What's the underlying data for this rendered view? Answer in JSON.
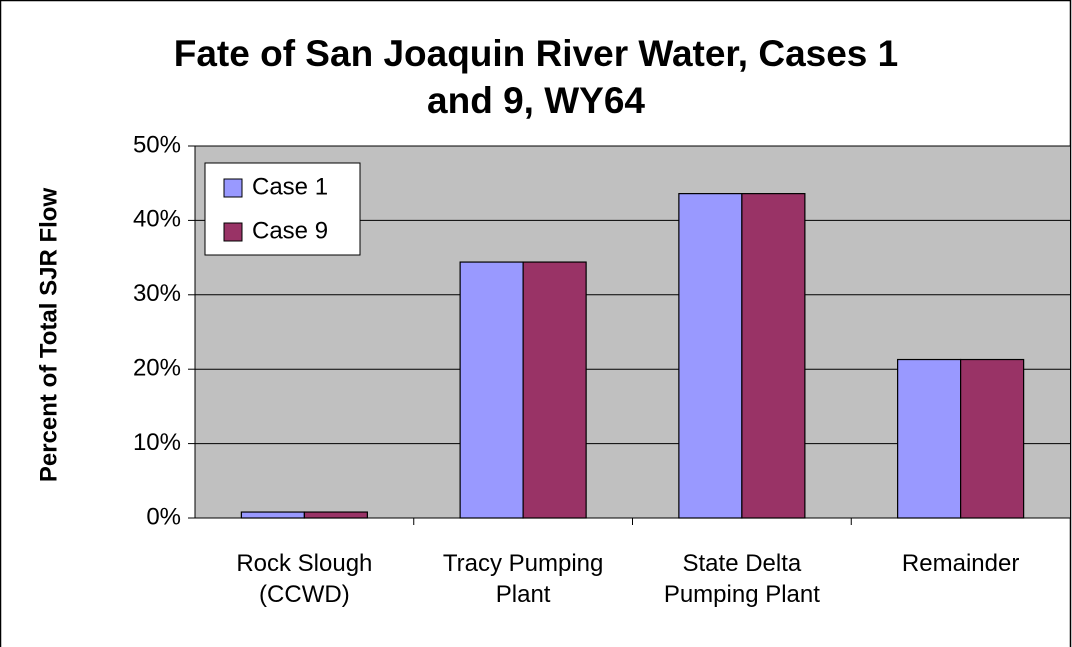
{
  "chart_data": {
    "type": "bar",
    "title": "Fate of San Joaquin River Water, Cases 1\nand 9, WY64",
    "ylabel": "Percent of Total SJR Flow",
    "categories": [
      "Rock Slough\n(CCWD)",
      "Tracy Pumping\nPlant",
      "State Delta\nPumping Plant",
      "Remainder"
    ],
    "series": [
      {
        "name": "Case 1",
        "color": "#9999ff",
        "values": [
          0.8,
          34.4,
          43.6,
          21.3
        ]
      },
      {
        "name": "Case 9",
        "color": "#993366",
        "values": [
          0.8,
          34.4,
          43.6,
          21.3
        ]
      }
    ],
    "ylim": [
      0,
      50
    ],
    "yticks": [
      {
        "value": 0,
        "label": "0%"
      },
      {
        "value": 10,
        "label": "10%"
      },
      {
        "value": 20,
        "label": "20%"
      },
      {
        "value": 30,
        "label": "30%"
      },
      {
        "value": 40,
        "label": "40%"
      },
      {
        "value": 50,
        "label": "50%"
      }
    ],
    "grid": true,
    "legend": "upper left",
    "plot_background": "#c0c0c0"
  }
}
